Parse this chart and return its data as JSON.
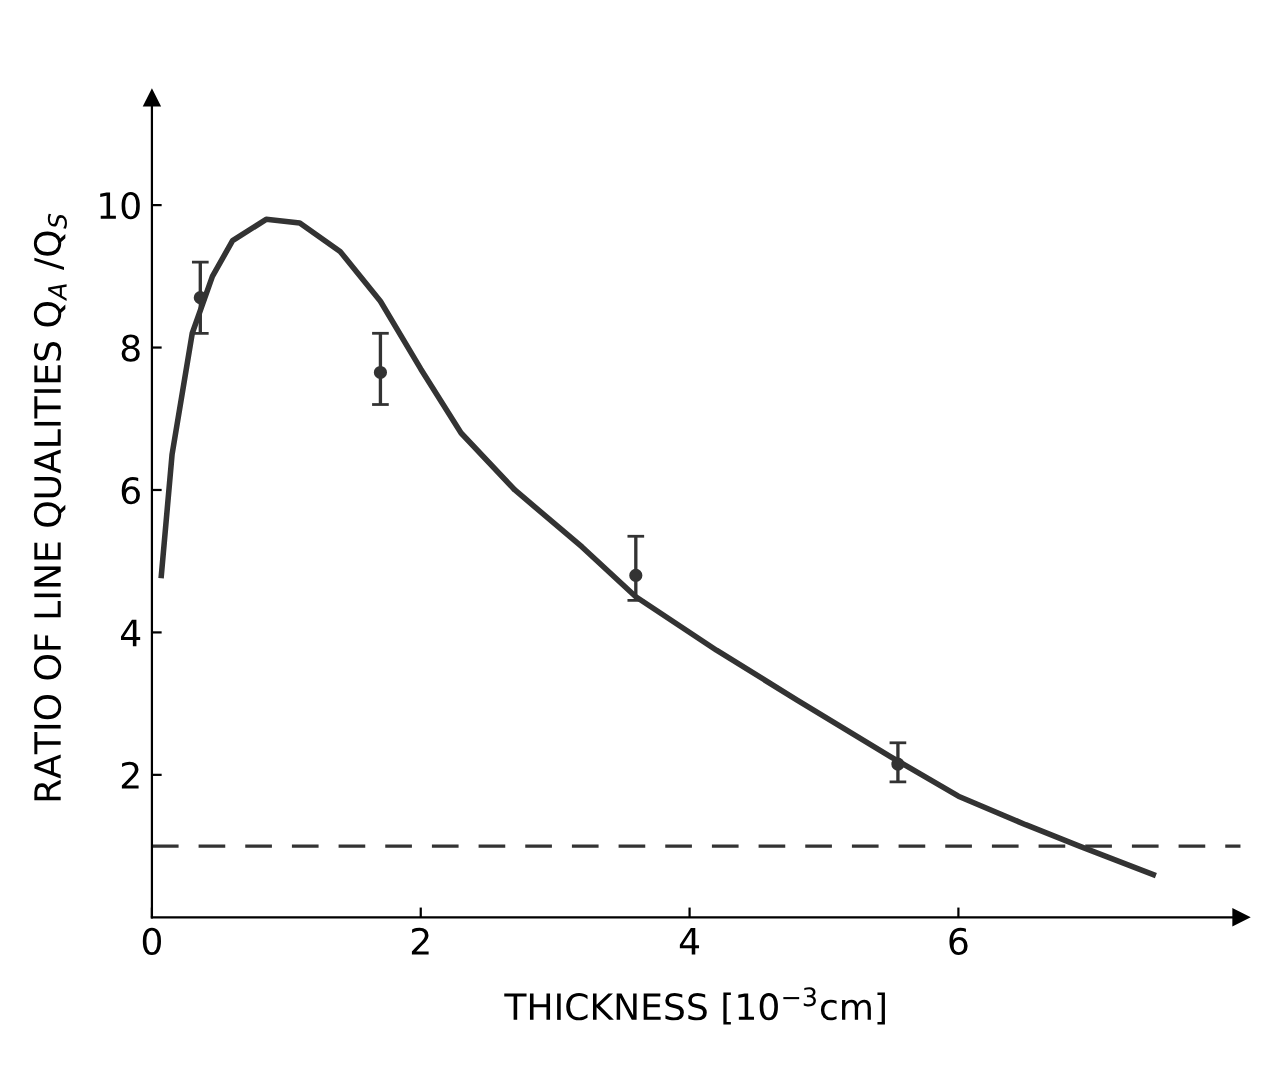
{
  "chart_data": {
    "type": "scatter",
    "xlabel": "THICKNESS [10$^{−3}$cm]",
    "ylabel": "RATIO OF LINE QUALITIES Q$_{A}$ /Q$_{S}$",
    "xlim": [
      0,
      8.1
    ],
    "ylim": [
      0,
      11.5
    ],
    "xticks": [
      0,
      2,
      4,
      6
    ],
    "yticks": [
      2,
      4,
      6,
      8,
      10
    ],
    "grid": false,
    "legend": false,
    "series": [
      {
        "color": "#333333",
        "marker": "circle",
        "x": [
          0.36,
          1.7,
          3.6,
          5.55
        ],
        "values": [
          8.7,
          7.65,
          4.8,
          2.15
        ],
        "errors": [
          [
            8.2,
            9.2
          ],
          [
            7.2,
            8.2
          ],
          [
            4.45,
            5.35
          ],
          [
            1.9,
            2.45
          ]
        ]
      },
      {
        "type": "line",
        "color": "#333333",
        "marker": "none",
        "line_style": "solid",
        "x": [
          0.07,
          0.15,
          0.3,
          0.45,
          0.6,
          0.85,
          1.1,
          1.4,
          1.7,
          2.0,
          2.3,
          2.7,
          3.2,
          3.6,
          4.2,
          4.8,
          5.5,
          6.0,
          6.5,
          6.9,
          7.45
        ],
        "values": [
          4.8,
          6.5,
          8.2,
          9.0,
          9.5,
          9.8,
          9.75,
          9.35,
          8.65,
          7.7,
          6.8,
          6.0,
          5.2,
          4.5,
          3.75,
          3.05,
          2.25,
          1.7,
          1.3,
          1.0,
          0.6
        ]
      }
    ],
    "ref_lines": [
      {
        "axis": "y",
        "value": 1,
        "color": "#333333",
        "line_style": "dashed"
      }
    ]
  }
}
